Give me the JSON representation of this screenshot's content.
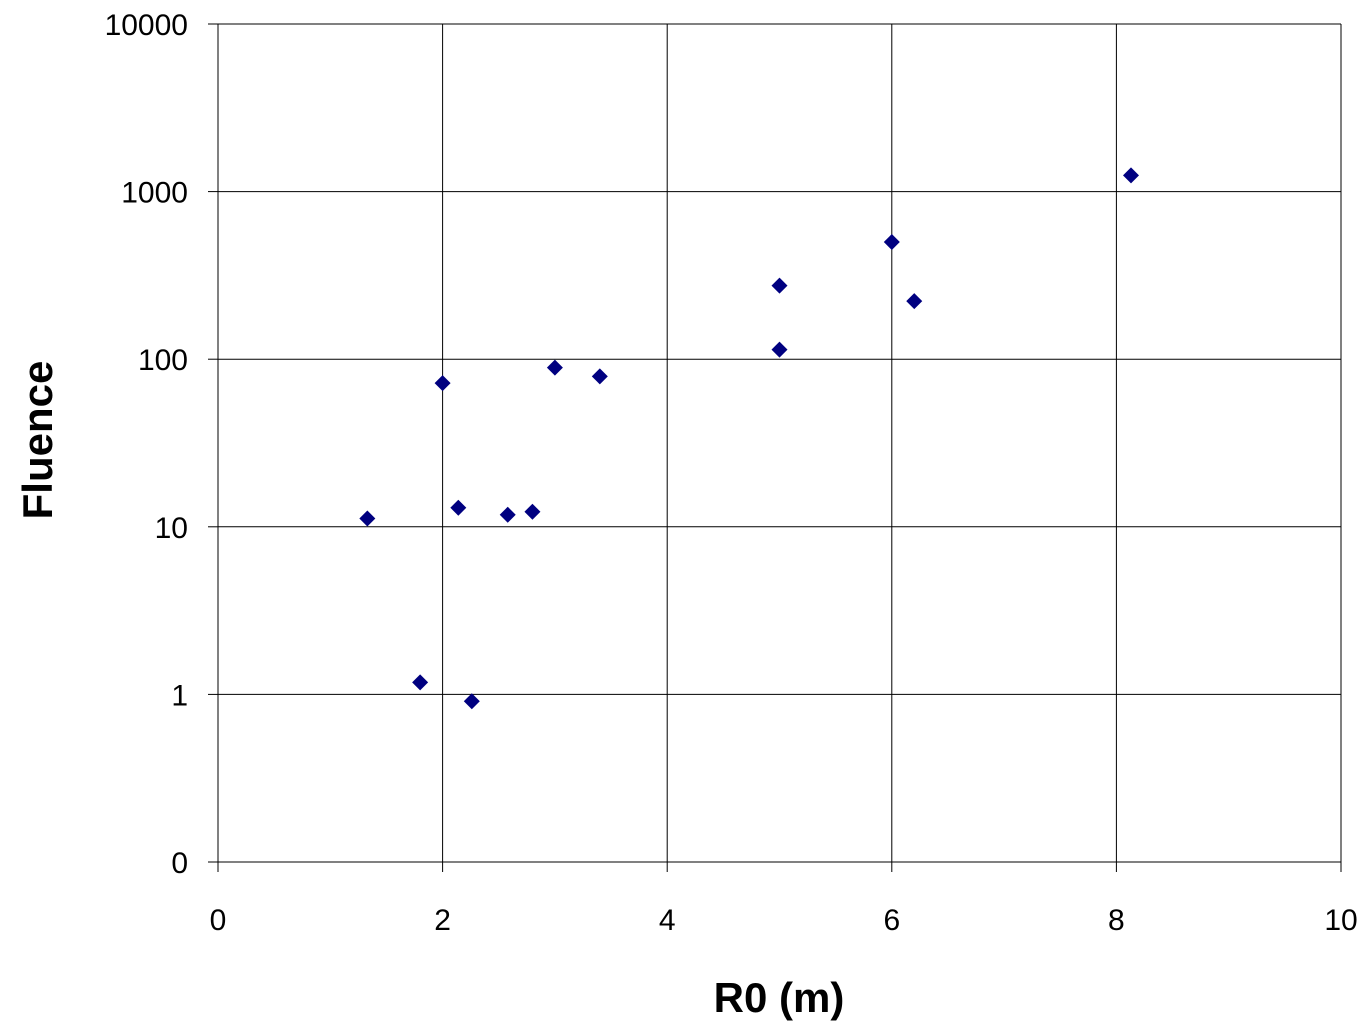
{
  "chart_data": {
    "type": "scatter",
    "title": "",
    "xlabel": "R0 (m)",
    "ylabel": "Fluence",
    "xlim": [
      0,
      10
    ],
    "x_ticks": [
      0,
      2,
      4,
      6,
      8,
      10
    ],
    "y_scale": "log",
    "y_ticks": [
      0.1,
      1,
      10,
      100,
      1000,
      10000
    ],
    "y_tick_labels": [
      "0",
      "1",
      "10",
      "100",
      "1000",
      "10000"
    ],
    "ylim": [
      0.1,
      10000
    ],
    "grid": true,
    "legend": "none",
    "marker": "diamond",
    "colors": {
      "marker": "#000080",
      "grid": "#000000",
      "background": "#ffffff"
    },
    "series": [
      {
        "points": [
          {
            "x": 1.33,
            "y": 11.2
          },
          {
            "x": 1.8,
            "y": 1.18
          },
          {
            "x": 2.0,
            "y": 72
          },
          {
            "x": 2.14,
            "y": 13
          },
          {
            "x": 2.26,
            "y": 0.91
          },
          {
            "x": 2.58,
            "y": 11.8
          },
          {
            "x": 2.8,
            "y": 12.3
          },
          {
            "x": 3.0,
            "y": 89
          },
          {
            "x": 3.4,
            "y": 79
          },
          {
            "x": 5.0,
            "y": 275
          },
          {
            "x": 5.0,
            "y": 114
          },
          {
            "x": 6.0,
            "y": 500
          },
          {
            "x": 6.2,
            "y": 222
          },
          {
            "x": 8.13,
            "y": 1250
          }
        ]
      }
    ]
  }
}
